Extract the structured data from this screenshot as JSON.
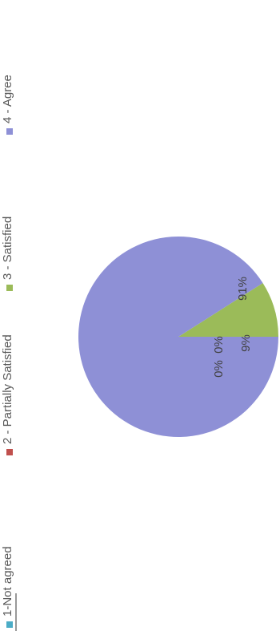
{
  "chart_data": {
    "type": "pie",
    "title": "",
    "categories": [
      "1-Not agreed",
      "2 - Partially Satisfied",
      "3 - Satisfied",
      "4 - Agree"
    ],
    "values": [
      0,
      0,
      9,
      91
    ],
    "data_labels": [
      "0%",
      "0%",
      "9%",
      "91%"
    ],
    "colors": [
      "#4BACC6",
      "#C0504D",
      "#9BBB59",
      "#8E90D6"
    ],
    "legend_position": "left",
    "orientation": "rotated 90 degrees clockwise"
  }
}
